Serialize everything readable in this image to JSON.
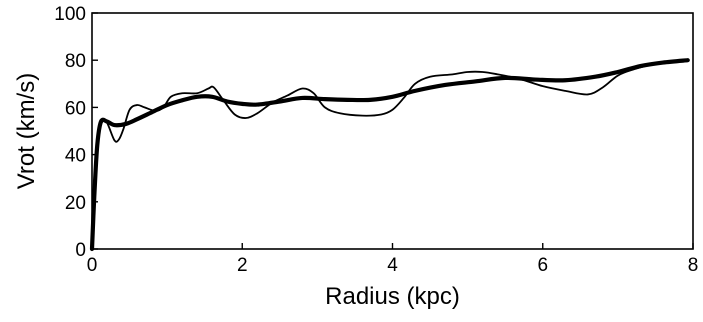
{
  "chart_data": {
    "type": "line",
    "title": "",
    "xlabel": "Radius (kpc)",
    "ylabel": "Vrot (km/s)",
    "xlim": [
      0,
      8
    ],
    "ylim": [
      0,
      100
    ],
    "x_ticks": [
      0,
      2,
      4,
      6,
      8
    ],
    "y_ticks": [
      0,
      20,
      40,
      60,
      80,
      100
    ],
    "x_tick_labels": [
      "0",
      "2",
      "4",
      "6",
      "8"
    ],
    "y_tick_labels": [
      "0",
      "20",
      "40",
      "60",
      "80",
      "100"
    ],
    "grid": false,
    "legend": "none",
    "colors": {
      "line": "#000000",
      "background": "#ffffff"
    },
    "series": [
      {
        "style": "thick",
        "points": [
          [
            0.0,
            0
          ],
          [
            0.03,
            22
          ],
          [
            0.07,
            44
          ],
          [
            0.12,
            54
          ],
          [
            0.2,
            54
          ],
          [
            0.3,
            52.5
          ],
          [
            0.45,
            53
          ],
          [
            0.6,
            55
          ],
          [
            0.8,
            58
          ],
          [
            1.0,
            61
          ],
          [
            1.2,
            63
          ],
          [
            1.4,
            64.5
          ],
          [
            1.6,
            64.5
          ],
          [
            1.8,
            62.5
          ],
          [
            2.0,
            61.5
          ],
          [
            2.2,
            61.2
          ],
          [
            2.5,
            62.5
          ],
          [
            2.8,
            64
          ],
          [
            3.1,
            63.5
          ],
          [
            3.4,
            63.2
          ],
          [
            3.7,
            63.2
          ],
          [
            4.0,
            64.5
          ],
          [
            4.3,
            67
          ],
          [
            4.7,
            69.5
          ],
          [
            5.1,
            71
          ],
          [
            5.5,
            72.5
          ],
          [
            5.9,
            71.8
          ],
          [
            6.3,
            71.5
          ],
          [
            6.7,
            73
          ],
          [
            7.0,
            75
          ],
          [
            7.3,
            77.5
          ],
          [
            7.6,
            79
          ],
          [
            7.93,
            80
          ]
        ]
      },
      {
        "style": "thin",
        "points": [
          [
            0.0,
            0
          ],
          [
            0.03,
            18
          ],
          [
            0.07,
            42
          ],
          [
            0.1,
            50
          ],
          [
            0.14,
            54
          ],
          [
            0.2,
            53.5
          ],
          [
            0.3,
            46
          ],
          [
            0.36,
            46.5
          ],
          [
            0.42,
            51
          ],
          [
            0.5,
            59
          ],
          [
            0.6,
            61
          ],
          [
            0.7,
            60
          ],
          [
            0.85,
            58.5
          ],
          [
            0.95,
            60
          ],
          [
            1.05,
            64.5
          ],
          [
            1.2,
            66
          ],
          [
            1.4,
            66
          ],
          [
            1.55,
            68
          ],
          [
            1.62,
            68.5
          ],
          [
            1.75,
            63
          ],
          [
            1.9,
            57
          ],
          [
            2.05,
            55.5
          ],
          [
            2.2,
            57.5
          ],
          [
            2.4,
            62
          ],
          [
            2.6,
            65
          ],
          [
            2.8,
            68
          ],
          [
            2.95,
            66
          ],
          [
            3.1,
            60
          ],
          [
            3.3,
            57.5
          ],
          [
            3.6,
            56.5
          ],
          [
            3.85,
            57
          ],
          [
            4.0,
            59
          ],
          [
            4.15,
            64
          ],
          [
            4.3,
            70
          ],
          [
            4.5,
            73
          ],
          [
            4.8,
            74
          ],
          [
            5.0,
            75
          ],
          [
            5.2,
            75
          ],
          [
            5.4,
            74
          ],
          [
            5.7,
            72
          ],
          [
            6.0,
            69
          ],
          [
            6.3,
            67
          ],
          [
            6.6,
            65.5
          ],
          [
            6.8,
            68.5
          ],
          [
            7.0,
            73.5
          ],
          [
            7.2,
            76
          ],
          [
            7.5,
            78.5
          ],
          [
            7.8,
            79.5
          ],
          [
            7.93,
            80
          ]
        ]
      }
    ]
  }
}
